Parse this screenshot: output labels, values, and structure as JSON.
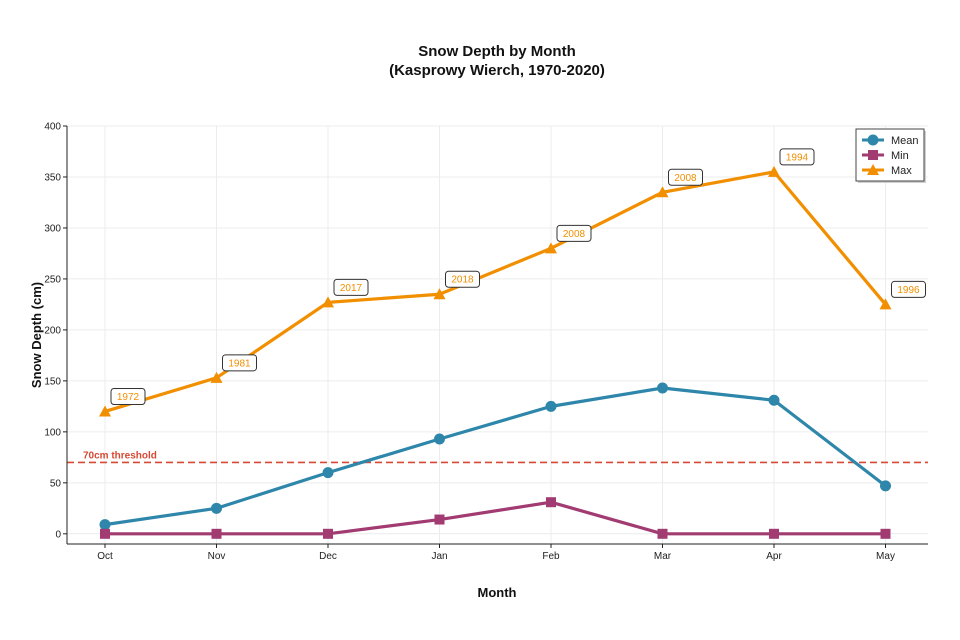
{
  "chart_data": {
    "type": "line",
    "title": "Snow Depth by Month",
    "subtitle": "(Kasprowy Wierch, 1970-2020)",
    "xlabel": "Month",
    "ylabel": "Snow Depth (cm)",
    "categories": [
      "Oct",
      "Nov",
      "Dec",
      "Jan",
      "Feb",
      "Mar",
      "Apr",
      "May"
    ],
    "ylim": [
      -10,
      400
    ],
    "yticks": [
      0,
      50,
      100,
      150,
      200,
      250,
      300,
      350,
      400
    ],
    "grid": true,
    "legend_position": "top-right",
    "series": [
      {
        "name": "Mean",
        "color": "#2e86ab",
        "marker": "circle",
        "values": [
          9,
          25,
          60,
          93,
          125,
          143,
          131,
          47
        ]
      },
      {
        "name": "Min",
        "color": "#a23b72",
        "marker": "square",
        "values": [
          0,
          0,
          0,
          14,
          31,
          0,
          0,
          0
        ]
      },
      {
        "name": "Max",
        "color": "#f18f01",
        "marker": "triangle",
        "values": [
          120,
          153,
          227,
          235,
          280,
          335,
          355,
          225
        ],
        "annotations": [
          "1972",
          "1981",
          "2017",
          "2018",
          "2008",
          "2008",
          "1994",
          "1996"
        ]
      }
    ],
    "threshold": {
      "value": 70,
      "label": "70cm threshold",
      "color": "#d64933"
    }
  }
}
